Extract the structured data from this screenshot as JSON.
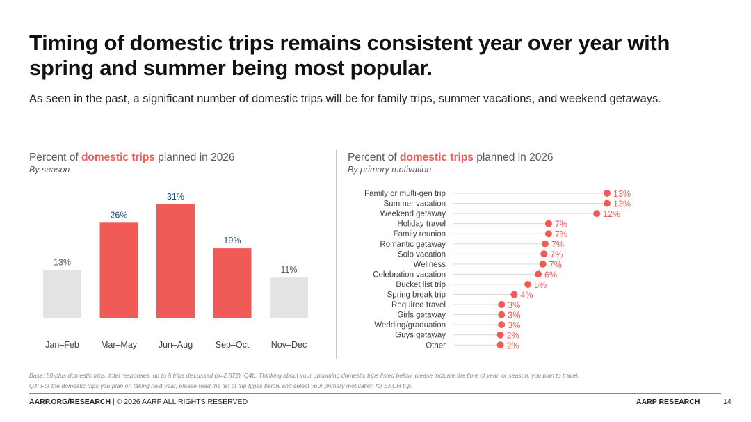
{
  "slide": {
    "title": "Timing of domestic trips remains consistent year over year with spring and summer being most popular.",
    "subtitle": "As seen in the past, a significant number of domestic trips will be for family trips, summer vacations, and weekend getaways."
  },
  "left_panel": {
    "title_pre": "Percent of ",
    "title_highlight": "domestic trips",
    "title_post": " planned in 2026",
    "subtitle": "By season"
  },
  "right_panel": {
    "title_pre": "Percent of ",
    "title_highlight": "domestic trips",
    "title_post": " planned in 2026",
    "subtitle": "By primary motivation"
  },
  "chart_data": [
    {
      "type": "bar",
      "categories": [
        "Jan–Feb",
        "Mar–May",
        "Jun–Aug",
        "Sep–Oct",
        "Nov–Dec"
      ],
      "values": [
        13,
        26,
        31,
        19,
        11
      ],
      "labels": [
        "13%",
        "26%",
        "31%",
        "19%",
        "11%"
      ],
      "highlighted": [
        false,
        true,
        true,
        true,
        false
      ],
      "ylim": [
        0,
        31
      ],
      "grid": false,
      "colors": {
        "highlight": "#f05a57",
        "muted": "#e3e3e3",
        "label_highlight": "#1f4e79",
        "label_muted": "#595959"
      }
    },
    {
      "type": "scatter",
      "style": "lollipop",
      "categories": [
        "Family or multi-gen trip",
        "Summer vacation",
        "Weekend getaway",
        "Holiday travel",
        "Family reunion",
        "Romantic getaway",
        "Solo vacation",
        "Wellness",
        "Celebration vacation",
        "Bucket list trip",
        "Spring break trip",
        "Required travel",
        "Girls getaway",
        "Wedding/graduation",
        "Guys getaway",
        "Other"
      ],
      "values": [
        13,
        13,
        12,
        7,
        7,
        7,
        7,
        7,
        6,
        5,
        4,
        3,
        3,
        3,
        2,
        2
      ],
      "labels": [
        "13%",
        "13%",
        "12%",
        "7%",
        "7%",
        "7%",
        "7%",
        "7%",
        "6%",
        "5%",
        "4%",
        "3%",
        "3%",
        "3%",
        "2%",
        "2%"
      ],
      "plot_values": [
        13.4,
        13.4,
        12.5,
        8.3,
        8.3,
        8.0,
        7.9,
        7.8,
        7.4,
        6.5,
        5.3,
        4.2,
        4.2,
        4.2,
        4.1,
        4.1
      ],
      "xlim": [
        0,
        14
      ],
      "grid": false,
      "colors": {
        "dot": "#f05a57",
        "label": "#f05a57",
        "line": "#d9d9d9",
        "category": "#404040"
      }
    }
  ],
  "footnote": {
    "line1": "Base: 50-plus domestic trips; total responses, up to 5 trips discussed (n=2,872). Q4b. Thinking about your upcoming domestic trips listed below, please indicate the time of year, or season, you plan to travel.",
    "line2": "Q4: For the domestic trips you plan on taking next year, please read the list of trip types below and select your primary motivation for EACH trip."
  },
  "footer": {
    "left_bold": "AARP.ORG/RESEARCH",
    "left_rest": " | © 2026 AARP ALL RIGHTS RESERVED",
    "right": "AARP RESEARCH",
    "page_number": "14"
  }
}
